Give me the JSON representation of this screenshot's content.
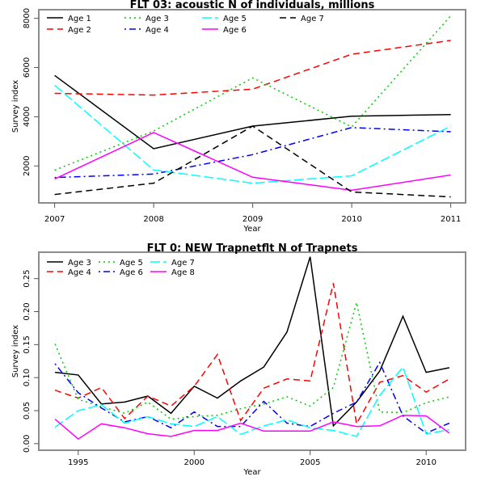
{
  "chart_data": [
    {
      "type": "line",
      "title": "FLT 03:   acoustic   N of individuals, millions",
      "xlabel": "Year",
      "ylabel": "Survey index",
      "x": [
        2007,
        2008,
        2009,
        2010,
        2011
      ],
      "xticks": [
        "2007",
        "2008",
        "2009",
        "2010",
        "2011"
      ],
      "yticks": [
        "2000",
        "4000",
        "6000",
        "8000"
      ],
      "ytick_values": [
        2000,
        4000,
        6000,
        8000
      ],
      "xlim": [
        2006.84,
        2011.15
      ],
      "ylim": [
        498,
        8350
      ],
      "grid": false,
      "legend": "top-left",
      "legend_columns": 4,
      "series": [
        {
          "name": "Age 1",
          "color": "#000000",
          "dash": "solid",
          "values": [
            5680,
            2700,
            3620,
            4020,
            4090
          ]
        },
        {
          "name": "Age 2",
          "color": "#ff0000",
          "dash": "dashed",
          "values": [
            4950,
            4880,
            5120,
            6540,
            7100
          ]
        },
        {
          "name": "Age 3",
          "color": "#00cd00",
          "dash": "dotted",
          "values": [
            1830,
            3420,
            5580,
            3590,
            8100
          ]
        },
        {
          "name": "Age 4",
          "color": "#0000ff",
          "dash": "dotdash",
          "values": [
            1530,
            1670,
            2460,
            3560,
            3390
          ]
        },
        {
          "name": "Age 5",
          "color": "#00ffff",
          "dash": "longdash",
          "values": [
            5280,
            1840,
            1300,
            1600,
            3620
          ]
        },
        {
          "name": "Age 6",
          "color": "#ff00ff",
          "dash": "solid",
          "values": [
            1470,
            3360,
            1540,
            1010,
            1630
          ]
        },
        {
          "name": "Age 7",
          "color": "#000000",
          "dash": "dashed",
          "values": [
            840,
            1300,
            3620,
            940,
            740
          ]
        }
      ]
    },
    {
      "type": "line",
      "title": "FLT 0: NEW Trapnetflt    N of Trapnets",
      "xlabel": "Year",
      "ylabel": "Survey index",
      "x": [
        1994,
        1995,
        1996,
        1997,
        1998,
        1999,
        2000,
        2001,
        2002,
        2003,
        2004,
        2005,
        2006,
        2007,
        2008,
        2009,
        2010,
        2011
      ],
      "xticks": [
        "1995",
        "2000",
        "2005",
        "2010"
      ],
      "xtick_values": [
        1995,
        2000,
        2005,
        2010
      ],
      "yticks": [
        "0.00",
        "0.05",
        "0.10",
        "0.15",
        "0.20",
        "0.25"
      ],
      "ytick_values": [
        0,
        0.05,
        0.1,
        0.15,
        0.2,
        0.25
      ],
      "xlim": [
        1993.3,
        2011.7
      ],
      "ylim": [
        -0.01,
        0.29
      ],
      "grid": false,
      "legend": "top-left",
      "legend_columns": 3,
      "series": [
        {
          "name": "Age 3",
          "color": "#000000",
          "dash": "solid",
          "values": [
            0.108,
            0.104,
            0.06,
            0.063,
            0.072,
            0.046,
            0.087,
            0.069,
            0.095,
            0.116,
            0.169,
            0.283,
            0.027,
            0.063,
            0.11,
            0.193,
            0.108,
            0.115
          ]
        },
        {
          "name": "Age 4",
          "color": "#ff0000",
          "dash": "dashed",
          "values": [
            0.081,
            0.069,
            0.085,
            0.038,
            0.072,
            0.057,
            0.087,
            0.135,
            0.035,
            0.084,
            0.098,
            0.095,
            0.243,
            0.03,
            0.093,
            0.103,
            0.078,
            0.098
          ]
        },
        {
          "name": "Age 5",
          "color": "#00cd00",
          "dash": "dotted",
          "values": [
            0.151,
            0.067,
            0.056,
            0.046,
            0.063,
            0.037,
            0.041,
            0.043,
            0.053,
            0.06,
            0.071,
            0.057,
            0.085,
            0.214,
            0.048,
            0.047,
            0.062,
            0.071
          ]
        },
        {
          "name": "Age 6",
          "color": "#0000ff",
          "dash": "dotdash",
          "values": [
            0.121,
            0.077,
            0.054,
            0.033,
            0.041,
            0.024,
            0.048,
            0.026,
            0.026,
            0.064,
            0.031,
            0.026,
            0.046,
            0.063,
            0.123,
            0.042,
            0.016,
            0.031
          ]
        },
        {
          "name": "Age 7",
          "color": "#00ffff",
          "dash": "longdash",
          "values": [
            0.025,
            0.05,
            0.059,
            0.031,
            0.041,
            0.03,
            0.026,
            0.041,
            0.014,
            0.027,
            0.036,
            0.024,
            0.02,
            0.011,
            0.073,
            0.116,
            0.015,
            0.021
          ]
        },
        {
          "name": "Age 8",
          "color": "#ff00ff",
          "dash": "solid",
          "values": [
            0.037,
            0.007,
            0.03,
            0.024,
            0.015,
            0.011,
            0.02,
            0.02,
            0.031,
            0.019,
            0.019,
            0.019,
            0.033,
            0.026,
            0.027,
            0.043,
            0.042,
            0.016
          ]
        }
      ]
    }
  ]
}
